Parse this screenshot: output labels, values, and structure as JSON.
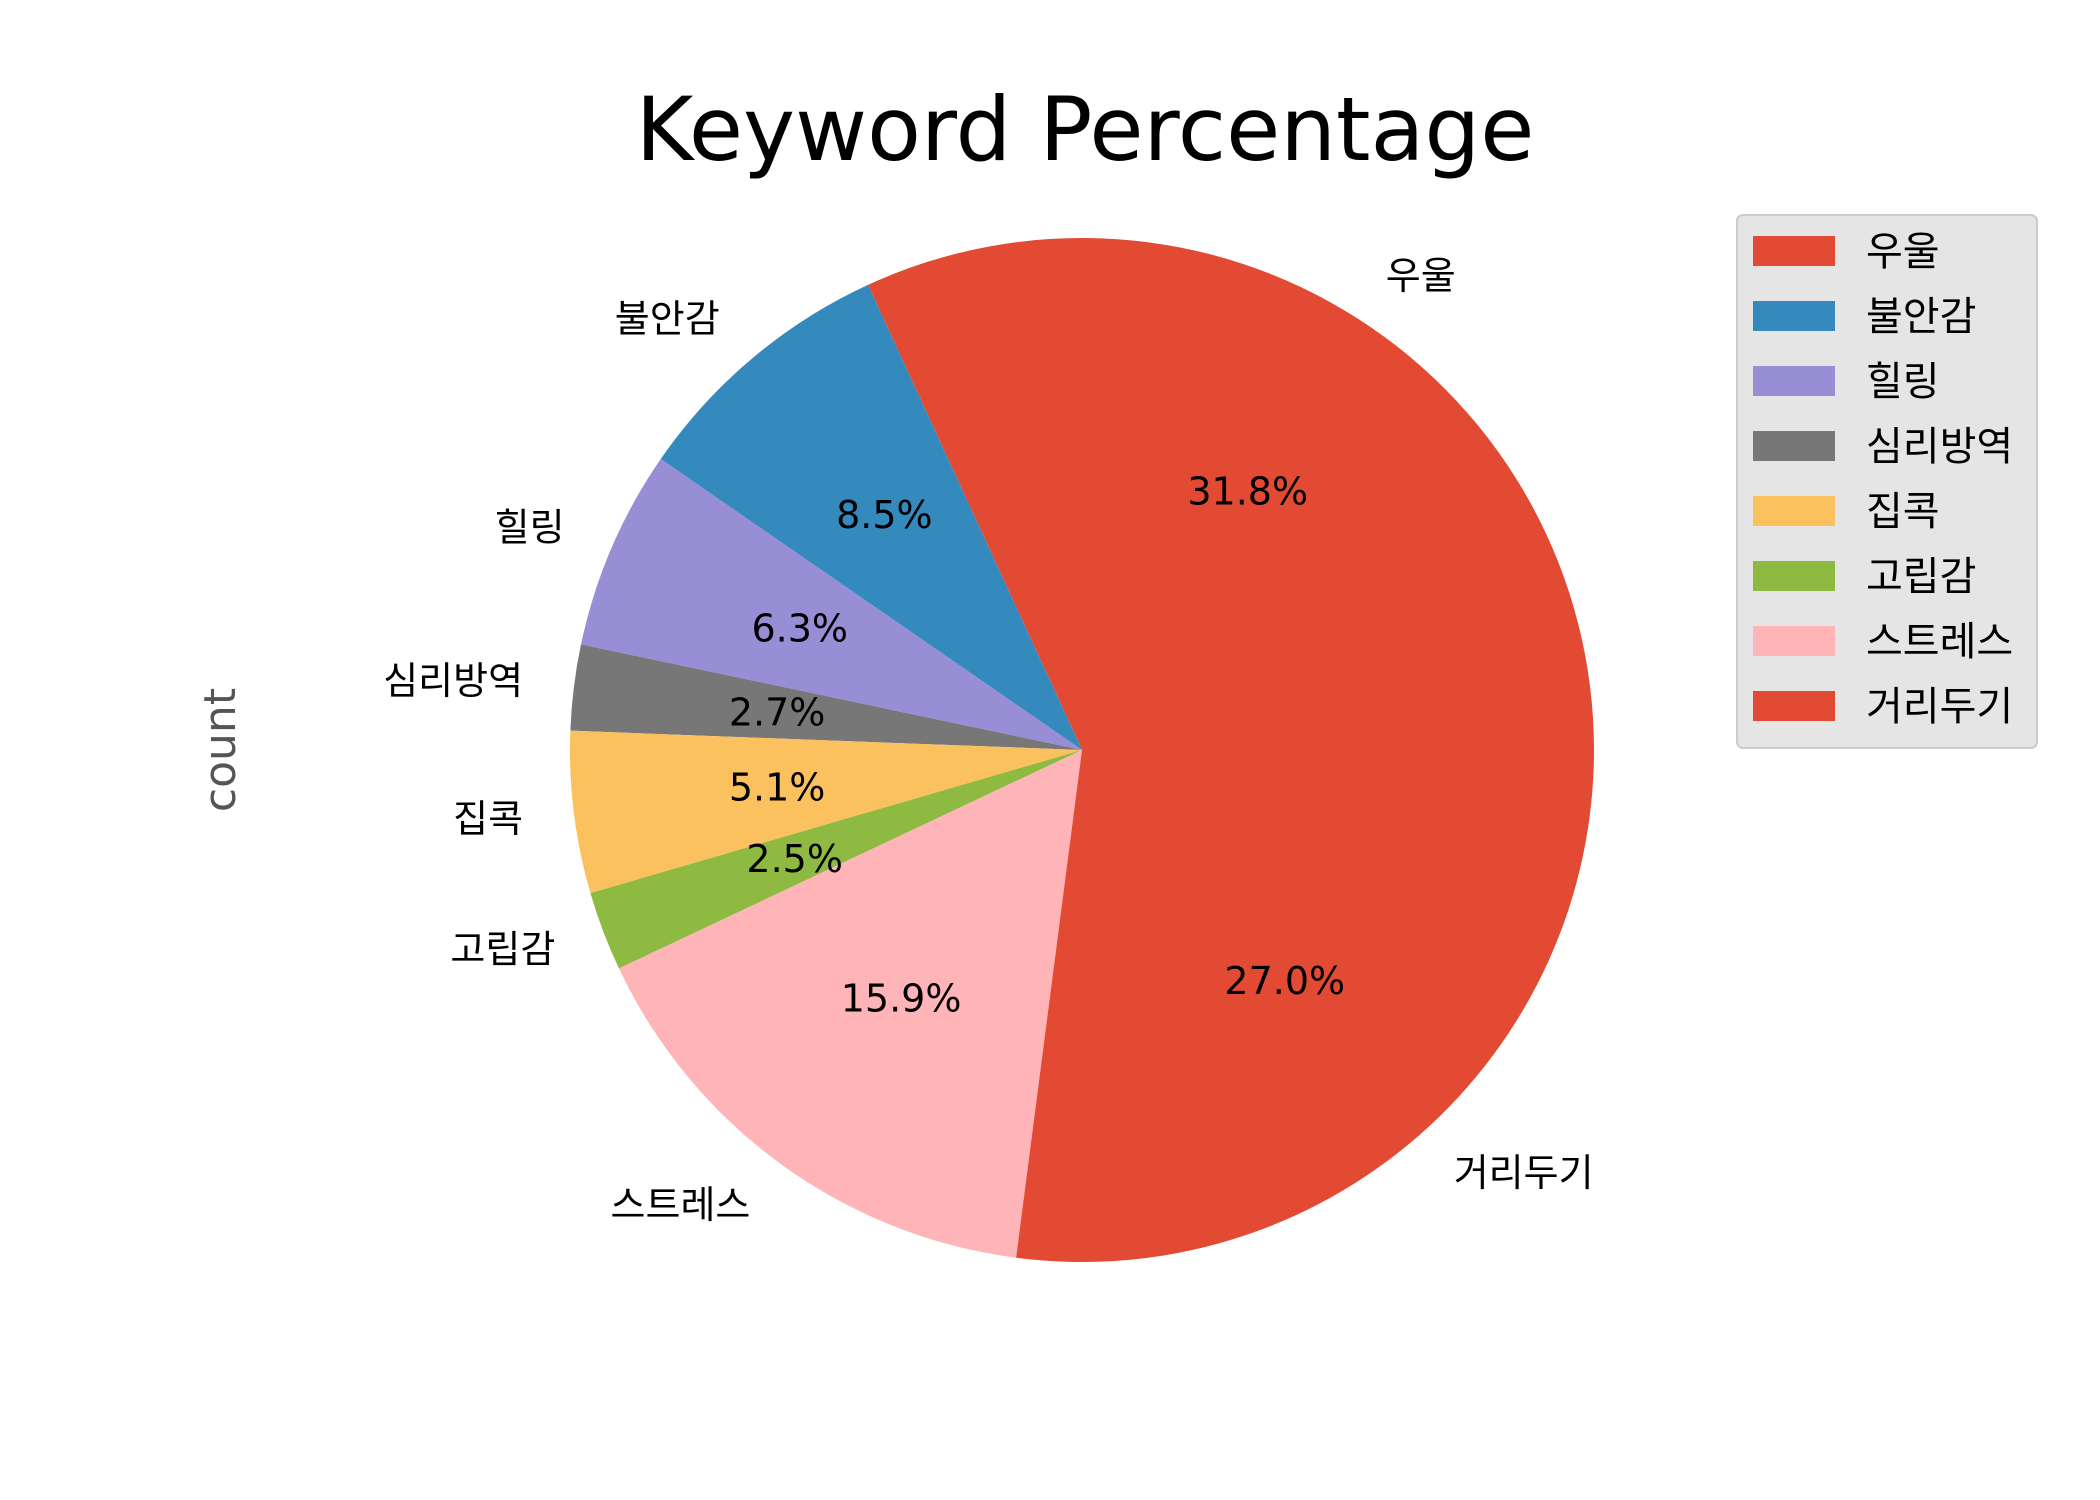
{
  "chart_data": {
    "type": "pie",
    "title": "Keyword Percentage",
    "ylabel": "count",
    "legend_position": "upper-right",
    "slices": [
      {
        "label": "우울",
        "percent": 31.8,
        "pct_text": "31.8%",
        "color": "#E24A33"
      },
      {
        "label": "불안감",
        "percent": 8.5,
        "pct_text": "8.5%",
        "color": "#348ABD"
      },
      {
        "label": "힐링",
        "percent": 6.3,
        "pct_text": "6.3%",
        "color": "#988ED5"
      },
      {
        "label": "심리방역",
        "percent": 2.7,
        "pct_text": "2.7%",
        "color": "#777777"
      },
      {
        "label": "집콕",
        "percent": 5.1,
        "pct_text": "5.1%",
        "color": "#FBC15E"
      },
      {
        "label": "고립감",
        "percent": 2.5,
        "pct_text": "2.5%",
        "color": "#8EBA42"
      },
      {
        "label": "스트레스",
        "percent": 15.9,
        "pct_text": "15.9%",
        "color": "#FFB5B8"
      },
      {
        "label": "거리두기",
        "percent": 27.0,
        "pct_text": "27.0%",
        "color": "#E24A33"
      }
    ]
  }
}
